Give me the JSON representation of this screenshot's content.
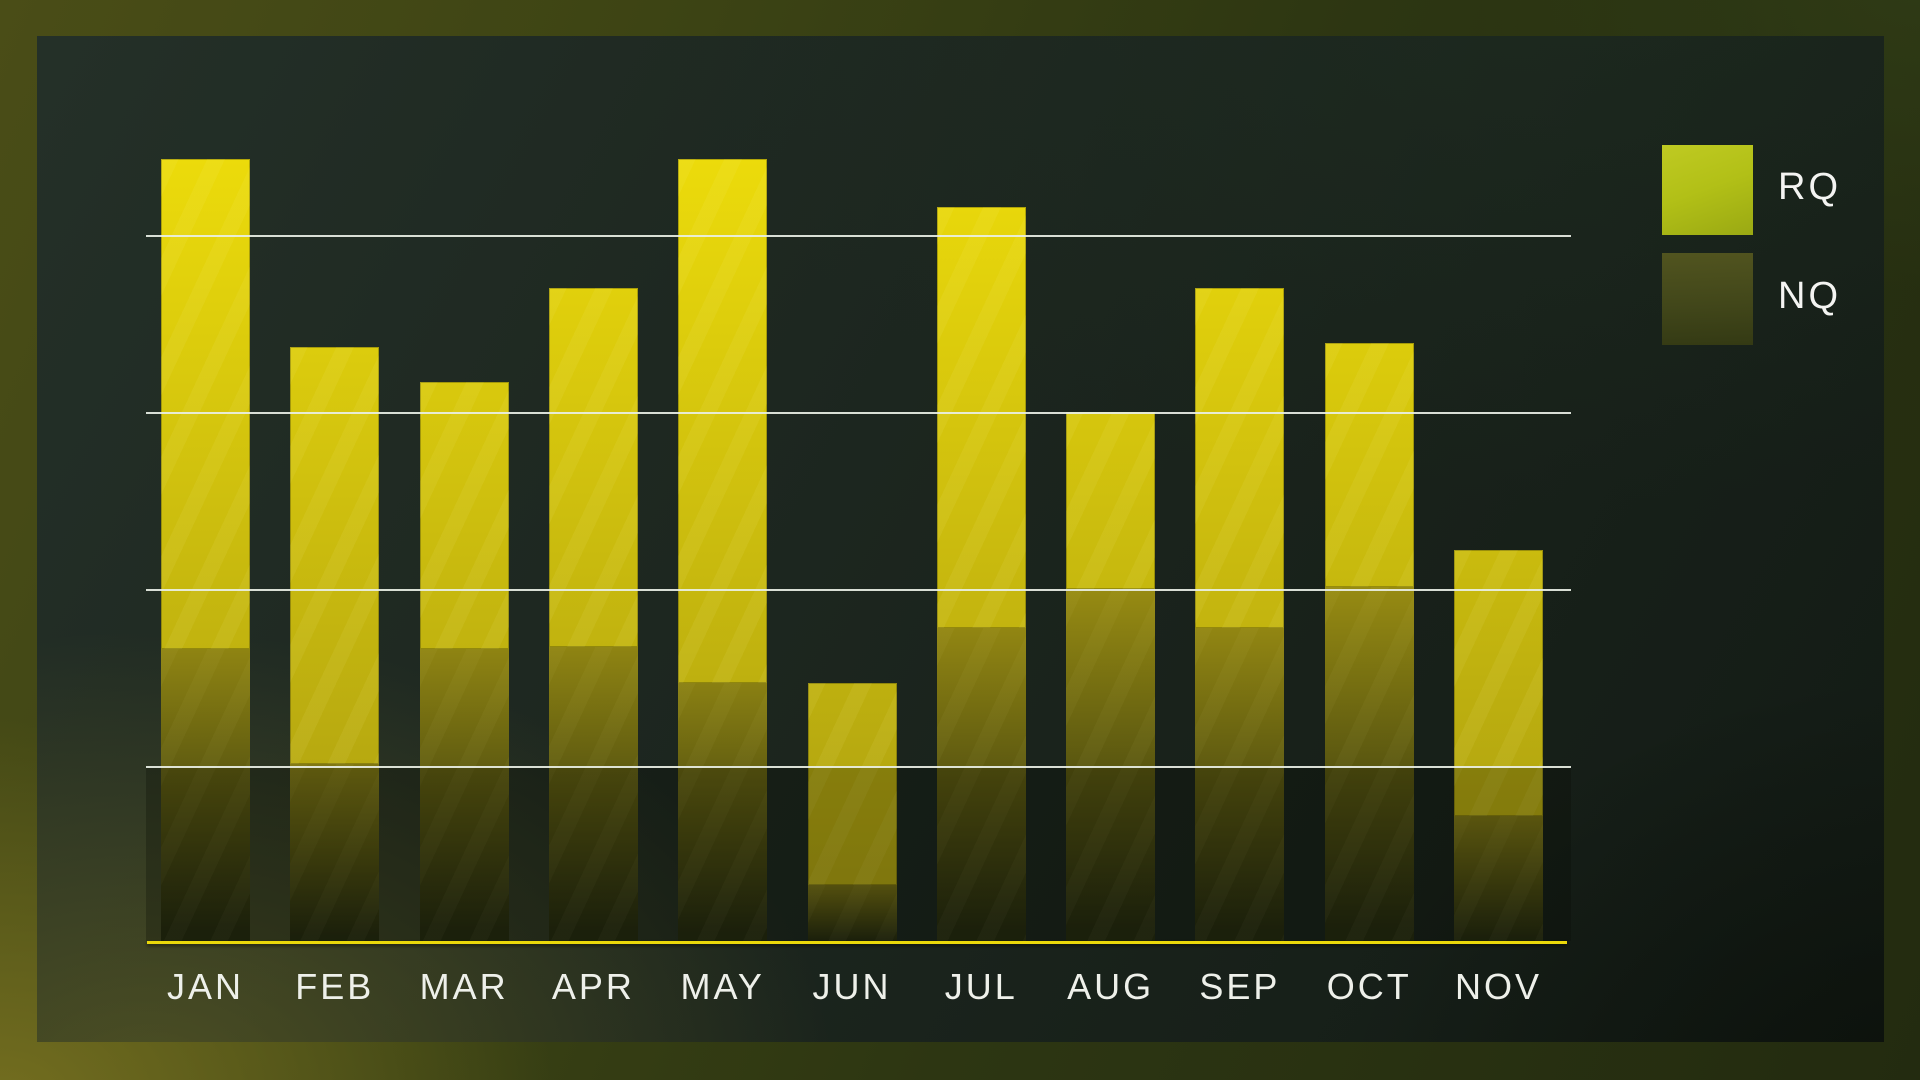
{
  "chart_data": {
    "type": "bar",
    "stacked": true,
    "categories": [
      "JAN",
      "FEB",
      "MAR",
      "APR",
      "MAY",
      "JUN",
      "JUL",
      "AUG",
      "SEP",
      "OCT",
      "NOV"
    ],
    "series": [
      {
        "name": "NQ",
        "role": "bottom-dark-segment",
        "values": [
          1.66,
          1.01,
          1.66,
          1.67,
          1.47,
          0.33,
          1.78,
          2.0,
          1.78,
          2.01,
          0.72
        ]
      },
      {
        "name": "RQ",
        "role": "top-bright-segment",
        "values": [
          2.77,
          2.36,
          1.51,
          2.03,
          2.96,
          1.14,
          2.38,
          1.0,
          1.92,
          1.38,
          1.5
        ]
      }
    ],
    "totals": [
      4.43,
      3.37,
      3.17,
      3.7,
      4.43,
      1.47,
      4.16,
      3.0,
      3.7,
      3.39,
      2.22
    ],
    "title": "",
    "xlabel": "",
    "ylabel": "",
    "y_axis": {
      "numeric_labels_visible": false,
      "gridline_values": [
        1,
        2,
        3,
        4
      ],
      "ylim": [
        0,
        4.7
      ],
      "note": "no numeric tick labels shown; values estimated in gridline units"
    },
    "grid": "horizontal-only",
    "legend_position": "top-right"
  },
  "legend": {
    "items": [
      {
        "label": "RQ",
        "swatch_color": "#b2c017"
      },
      {
        "label": "NQ",
        "swatch_color": "#42471a"
      }
    ]
  },
  "colors": {
    "rq_bright_top": "#ecdb0b",
    "rq_bright_low": "#ab9e11",
    "nq_start_hi": "#988c12",
    "nq_start_lo": "#6f6812",
    "nq_end": "#23280f",
    "axis_line": "#ead80a",
    "gridline": "#e9efe5",
    "label_text": "#eef0ea",
    "panel_bg": "#1d2720",
    "frame_olive": "#4a4d17"
  }
}
